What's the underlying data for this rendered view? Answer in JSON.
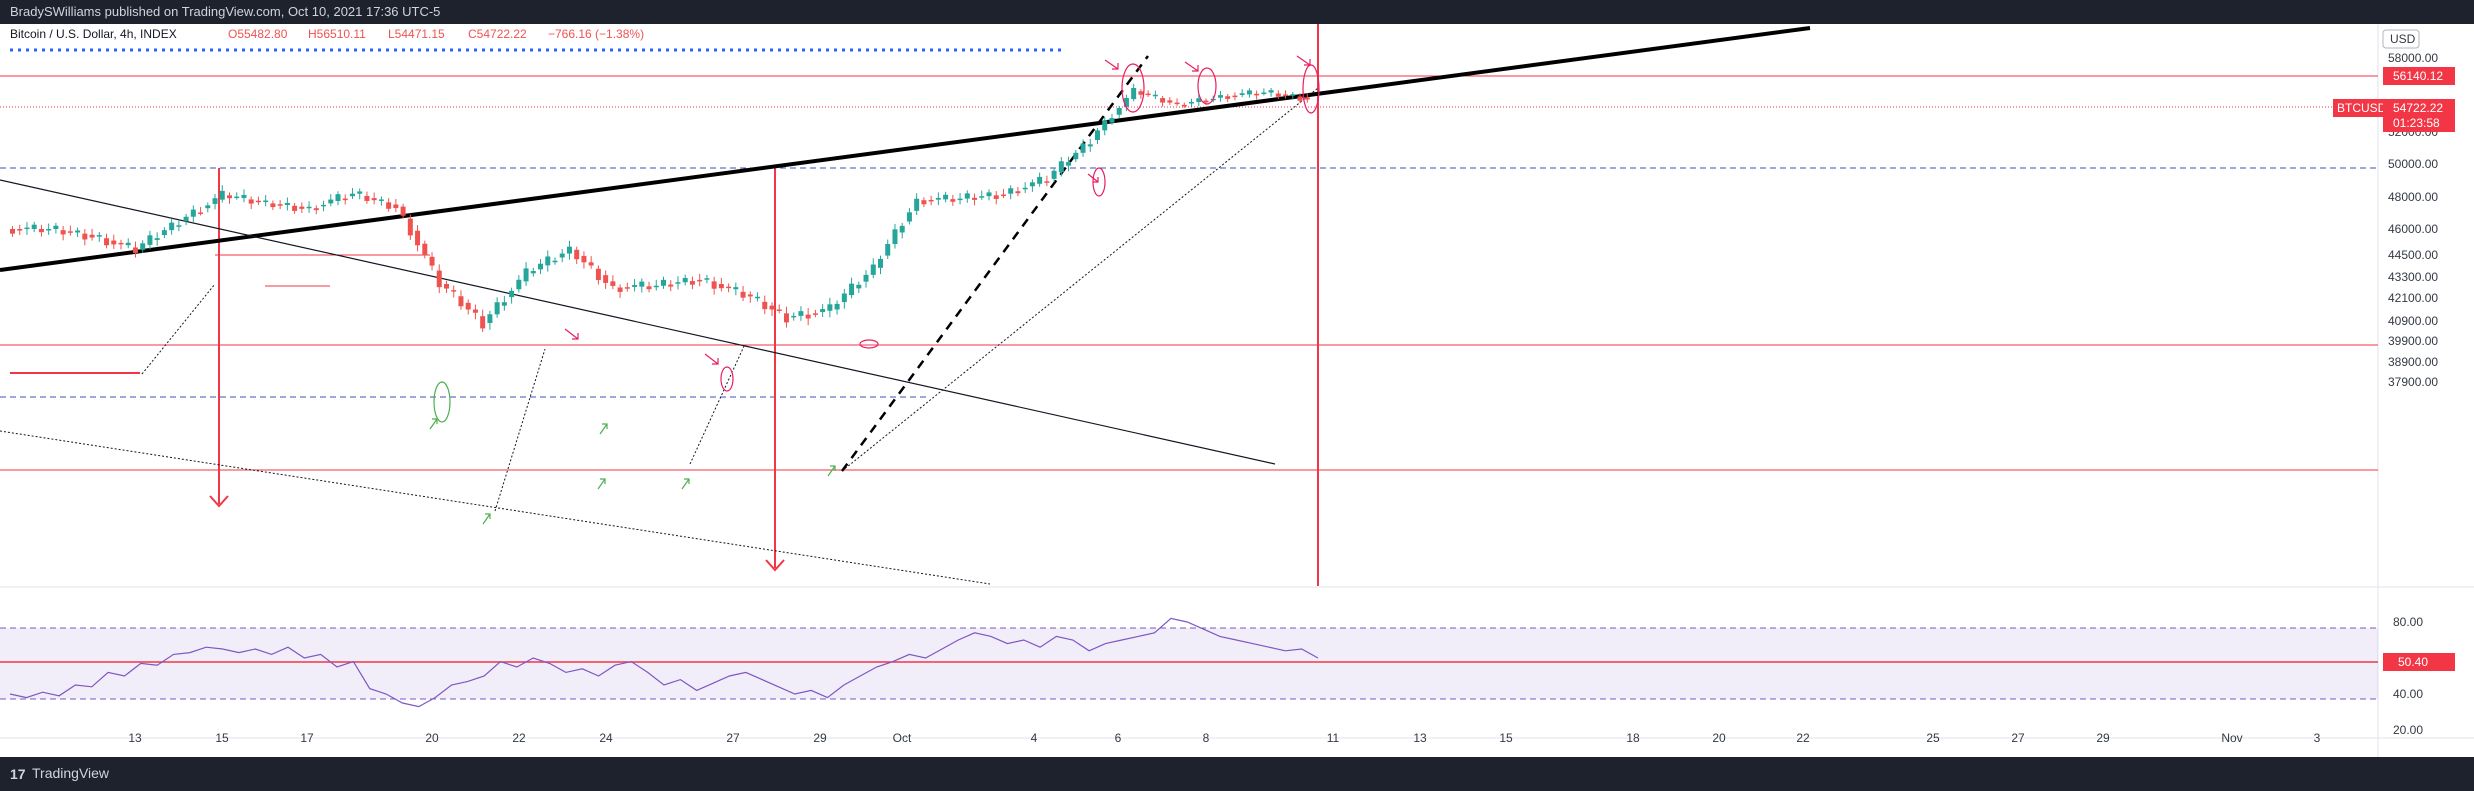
{
  "publish_line": "BradySWilliams published on TradingView.com, Oct 10, 2021 17:36 UTC-5",
  "brand": {
    "mark": "17",
    "name": "TradingView"
  },
  "chart_data": {
    "type": "candlestick",
    "instrument": "Bitcoin / U.S. Dollar, 4h, INDEX",
    "ohlc": {
      "open": "O55482.80",
      "high": "H56510.11",
      "low": "L54471.15",
      "close": "C54722.22",
      "change": "−766.16 (−1.38%)"
    },
    "currency": "USD",
    "price_ticks": [
      "58000.00",
      "52000.00",
      "50000.00",
      "48000.00",
      "46000.00",
      "44500.00",
      "43300.00",
      "42100.00",
      "40900.00",
      "39900.00",
      "38900.00",
      "37900.00"
    ],
    "ylim": [
      37500,
      58400
    ],
    "date_ticks": [
      "13",
      "15",
      "17",
      "20",
      "22",
      "24",
      "27",
      "29",
      "Oct",
      "4",
      "6",
      "8",
      "11",
      "13",
      "15",
      "18",
      "20",
      "22",
      "25",
      "27",
      "29",
      "Nov",
      "3"
    ],
    "horizontal_levels": [
      56140.12,
      52000,
      49850,
      45170,
      40970
    ],
    "labels": {
      "level_tag": "56140.12",
      "symbol_tag": "BTCUSD",
      "price_tag": "54722.22",
      "countdown_tag": "01:23:58"
    },
    "close_path": [
      [
        "Sep 11",
        46000
      ],
      [
        "Sep 12",
        45600
      ],
      [
        "Sep 13",
        44800
      ],
      [
        "Sep 14",
        46500
      ],
      [
        "Sep 15",
        48100
      ],
      [
        "Sep 16",
        47600
      ],
      [
        "Sep 17",
        47300
      ],
      [
        "Sep 18",
        48200
      ],
      [
        "Sep 19",
        47400
      ],
      [
        "Sep 20",
        42900
      ],
      [
        "Sep 21",
        40800
      ],
      [
        "Sep 22",
        43500
      ],
      [
        "Sep 23",
        44800
      ],
      [
        "Sep 24",
        42700
      ],
      [
        "Sep 25",
        42800
      ],
      [
        "Sep 26",
        43200
      ],
      [
        "Sep 27",
        42300
      ],
      [
        "Sep 28",
        41100
      ],
      [
        "Sep 29",
        41500
      ],
      [
        "Sep 30",
        43800
      ],
      [
        "Oct 1",
        47800
      ],
      [
        "Oct 2",
        47900
      ],
      [
        "Oct 3",
        48200
      ],
      [
        "Oct 4",
        49100
      ],
      [
        "Oct 5",
        51500
      ],
      [
        "Oct 6",
        55300
      ],
      [
        "Oct 7",
        54200
      ],
      [
        "Oct 8",
        54900
      ],
      [
        "Oct 9",
        55200
      ],
      [
        "Oct 10",
        54722
      ]
    ],
    "rsi": {
      "ticks": [
        "80.00",
        "60.00",
        "40.00",
        "20.00"
      ],
      "ylim": [
        15,
        88
      ],
      "value_tag": "50.40",
      "bands": [
        70,
        30
      ],
      "level": 50.4,
      "values": [
        40,
        38,
        41,
        39,
        45,
        44,
        52,
        50,
        57,
        56,
        62,
        63,
        66,
        65,
        63,
        65,
        62,
        66,
        60,
        62,
        55,
        58,
        43,
        40,
        35,
        33,
        38,
        45,
        47,
        50,
        58,
        55,
        60,
        57,
        52,
        54,
        50,
        56,
        58,
        52,
        45,
        48,
        42,
        46,
        50,
        52,
        48,
        44,
        40,
        42,
        38,
        45,
        50,
        55,
        58,
        62,
        60,
        65,
        70,
        74,
        72,
        68,
        70,
        66,
        72,
        70,
        64,
        68,
        70,
        72,
        74,
        82,
        80,
        76,
        72,
        70,
        68,
        66,
        64,
        65,
        60
      ]
    },
    "colors": {
      "bull": "#26a69a",
      "bear": "#ef5350",
      "level": "#f23645",
      "rsi": "#7e57c2",
      "dashed_blue": "#2962ff"
    }
  }
}
